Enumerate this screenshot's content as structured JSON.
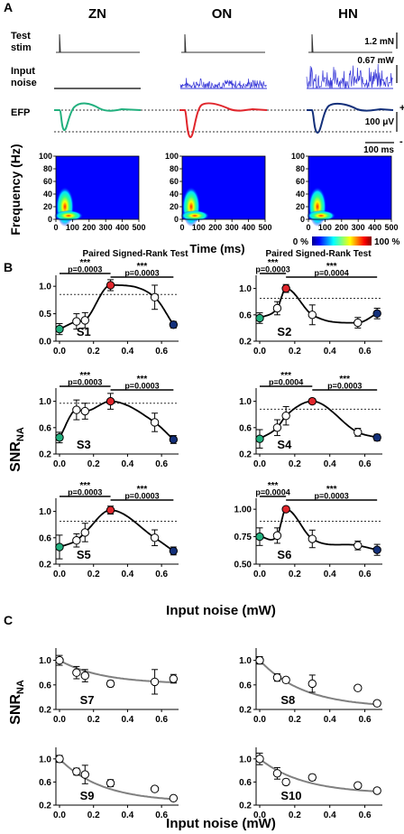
{
  "panel_letters": [
    "A",
    "B",
    "C"
  ],
  "panel_a": {
    "columns": [
      "ZN",
      "ON",
      "HN"
    ],
    "row_labels": {
      "stim": [
        "Test",
        "stim"
      ],
      "noise": [
        "Input",
        "noise"
      ],
      "efp": "EFP"
    },
    "scalebars": {
      "stim": "1.2 mN",
      "noise": "0.67 mW",
      "efp": "100 μV",
      "time": "100 ms"
    },
    "efp_signs": {
      "plus": "+",
      "minus": "-"
    },
    "spectrogram": {
      "ylabel": "Frequency (Hz)",
      "xlabel": "Time (ms)",
      "y_ticks": [
        0,
        20,
        40,
        60,
        80,
        100
      ],
      "x_ticks": [
        0,
        100,
        200,
        300,
        400,
        500
      ],
      "colorbar_min": "0 %",
      "colorbar_max": "100 %"
    },
    "noise_levels_mW": [
      0,
      0.3,
      0.67
    ],
    "colors": {
      "ZN": "#22b07e",
      "ON": "#e0262c",
      "HN": "#13307a",
      "noise": "#3a3ad8"
    }
  },
  "panel_b": {
    "test_label": "Paired Signed-Rank Test",
    "xlabel": "Input noise (mW)",
    "ylabel_main": "SNR",
    "ylabel_sub": "NA"
  },
  "panel_c": {
    "xlabel": "Input noise (mW)",
    "ylabel_main": "SNR",
    "ylabel_sub": "NA"
  },
  "chart_data": [
    {
      "type": "line",
      "panel": "B",
      "title": "S1",
      "x": [
        0,
        0.1,
        0.15,
        0.3,
        0.56,
        0.67
      ],
      "values": [
        0.22,
        0.36,
        0.38,
        1.02,
        0.8,
        0.3
      ],
      "errors": [
        0.1,
        0.14,
        0.14,
        0.1,
        0.22,
        0.06
      ],
      "highlight_index": 3,
      "threshold": 0.85,
      "ylim": [
        0,
        1.2
      ],
      "y_ticks": [
        0.0,
        0.5,
        1.0
      ],
      "x_ticks": [
        0.0,
        0.2,
        0.4,
        0.6
      ],
      "sig_left": "***",
      "p_left": "p=0.0003",
      "sig_right": "***",
      "p_right": "p=0.0003"
    },
    {
      "type": "line",
      "panel": "B",
      "title": "S2",
      "x": [
        0,
        0.1,
        0.15,
        0.3,
        0.56,
        0.67
      ],
      "values": [
        0.55,
        0.7,
        1.0,
        0.6,
        0.48,
        0.62
      ],
      "errors": [
        0.08,
        0.1,
        0.06,
        0.15,
        0.08,
        0.08
      ],
      "highlight_index": 2,
      "threshold": 0.85,
      "ylim": [
        0.2,
        1.2
      ],
      "y_ticks": [
        0.2,
        0.6,
        1.0
      ],
      "x_ticks": [
        0.0,
        0.2,
        0.4,
        0.6
      ],
      "sig_left": "***",
      "p_left": "p=0.0003",
      "sig_right": "***",
      "p_right": "p=0.0004"
    },
    {
      "type": "line",
      "panel": "B",
      "title": "S3",
      "x": [
        0,
        0.1,
        0.15,
        0.3,
        0.56,
        0.67
      ],
      "values": [
        0.45,
        0.87,
        0.85,
        1.0,
        0.68,
        0.42
      ],
      "errors": [
        0.08,
        0.15,
        0.12,
        0.12,
        0.14,
        0.06
      ],
      "highlight_index": 3,
      "threshold": 0.97,
      "ylim": [
        0.2,
        1.2
      ],
      "y_ticks": [
        0.2,
        0.6,
        1.0
      ],
      "x_ticks": [
        0.0,
        0.2,
        0.4,
        0.6
      ],
      "sig_left": "***",
      "p_left": "p=0.0003",
      "sig_right": "***",
      "p_right": "p=0.0003"
    },
    {
      "type": "line",
      "panel": "B",
      "title": "S4",
      "x": [
        0,
        0.1,
        0.15,
        0.3,
        0.56,
        0.67
      ],
      "values": [
        0.43,
        0.6,
        0.78,
        1.0,
        0.53,
        0.45
      ],
      "errors": [
        0.14,
        0.12,
        0.14,
        0.04,
        0.06,
        0.05
      ],
      "highlight_index": 3,
      "threshold": 0.88,
      "ylim": [
        0.2,
        1.2
      ],
      "y_ticks": [
        0.2,
        0.6,
        1.0
      ],
      "x_ticks": [
        0.0,
        0.2,
        0.4,
        0.6
      ],
      "sig_left": "***",
      "p_left": "p=0.0004",
      "sig_right": "***",
      "p_right": "p=0.0003"
    },
    {
      "type": "line",
      "panel": "B",
      "title": "S5",
      "x": [
        0,
        0.1,
        0.15,
        0.3,
        0.56,
        0.67
      ],
      "values": [
        0.46,
        0.56,
        0.68,
        1.02,
        0.6,
        0.4
      ],
      "errors": [
        0.18,
        0.1,
        0.14,
        0.06,
        0.12,
        0.06
      ],
      "highlight_index": 3,
      "threshold": 0.85,
      "ylim": [
        0.2,
        1.2
      ],
      "y_ticks": [
        0.2,
        0.6,
        1.0
      ],
      "x_ticks": [
        0.0,
        0.2,
        0.4,
        0.6
      ],
      "sig_left": "***",
      "p_left": "p=0.0003",
      "sig_right": "***",
      "p_right": "p=0.0003"
    },
    {
      "type": "line",
      "panel": "B",
      "title": "S6",
      "x": [
        0,
        0.1,
        0.15,
        0.3,
        0.56,
        0.67
      ],
      "values": [
        0.75,
        0.76,
        1.0,
        0.73,
        0.67,
        0.63
      ],
      "errors": [
        0.08,
        0.07,
        0.02,
        0.08,
        0.04,
        0.05
      ],
      "highlight_index": 2,
      "threshold": 0.89,
      "ylim": [
        0.5,
        1.1
      ],
      "y_ticks": [
        0.5,
        0.75,
        1.0
      ],
      "y_tick_labels": [
        "0.50",
        "0.75",
        "1.00"
      ],
      "x_ticks": [
        0.0,
        0.2,
        0.4,
        0.6
      ],
      "sig_left": "***",
      "p_left": "p=0.0004",
      "sig_right": "***",
      "p_right": "p=0.0003"
    },
    {
      "type": "scatter",
      "panel": "C",
      "title": "S7",
      "x": [
        0,
        0.1,
        0.15,
        0.3,
        0.56,
        0.67
      ],
      "values": [
        1.0,
        0.8,
        0.75,
        0.62,
        0.65,
        0.7
      ],
      "errors": [
        0.08,
        0.1,
        0.1,
        0.05,
        0.2,
        0.07
      ],
      "fit": "exponential",
      "ylim": [
        0.2,
        1.2
      ],
      "y_ticks": [
        0.2,
        0.6,
        1.0
      ],
      "x_ticks": [
        0.0,
        0.2,
        0.4,
        0.6
      ]
    },
    {
      "type": "scatter",
      "panel": "C",
      "title": "S8",
      "x": [
        0,
        0.1,
        0.15,
        0.3,
        0.56,
        0.67
      ],
      "values": [
        1.0,
        0.72,
        0.68,
        0.62,
        0.55,
        0.3
      ],
      "errors": [
        0.06,
        0.06,
        0.04,
        0.14,
        0.04,
        0.04
      ],
      "fit": "exponential",
      "ylim": [
        0.2,
        1.2
      ],
      "y_ticks": [
        0.2,
        0.6,
        1.0
      ],
      "x_ticks": [
        0.0,
        0.2,
        0.4,
        0.6
      ]
    },
    {
      "type": "scatter",
      "panel": "C",
      "title": "S9",
      "x": [
        0,
        0.1,
        0.15,
        0.3,
        0.56,
        0.67
      ],
      "values": [
        1.0,
        0.78,
        0.73,
        0.58,
        0.48,
        0.32
      ],
      "errors": [
        0.06,
        0.06,
        0.16,
        0.06,
        0.04,
        0.03
      ],
      "fit": "exponential",
      "ylim": [
        0.2,
        1.2
      ],
      "y_ticks": [
        0.2,
        0.6,
        1.0
      ],
      "x_ticks": [
        0.0,
        0.2,
        0.4,
        0.6
      ]
    },
    {
      "type": "scatter",
      "panel": "C",
      "title": "S10",
      "x": [
        0,
        0.1,
        0.15,
        0.3,
        0.56,
        0.67
      ],
      "values": [
        1.0,
        0.75,
        0.6,
        0.68,
        0.54,
        0.45
      ],
      "errors": [
        0.1,
        0.1,
        0.05,
        0.05,
        0.04,
        0.04
      ],
      "fit": "exponential",
      "ylim": [
        0.2,
        1.2
      ],
      "y_ticks": [
        0.2,
        0.6,
        1.0
      ],
      "x_ticks": [
        0.0,
        0.2,
        0.4,
        0.6
      ]
    }
  ]
}
